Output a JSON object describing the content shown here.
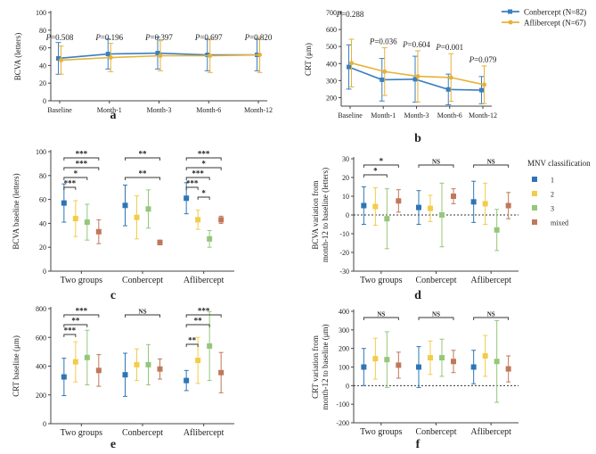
{
  "colors": {
    "conbercept": "#3a7fbf",
    "aflibercept": "#e6b23a",
    "mnv1": "#2e75b6",
    "mnv2": "#f2cc4a",
    "mnv3": "#94c77a",
    "mixed": "#c0785a"
  },
  "legend_top": {
    "conbercept": "Conbercept (N=82)",
    "aflibercept": "Aflibercept (N=67)"
  },
  "legend_mnv": {
    "title": "MNV classification",
    "items": [
      "1",
      "2",
      "3",
      "mixed"
    ]
  },
  "chart_data": [
    {
      "panel": "a",
      "type": "line",
      "ylabel": "BCVA (letters)",
      "categories": [
        "Baseline",
        "Month-1",
        "Month-3",
        "Month-6",
        "Month-12"
      ],
      "ylim": [
        0,
        100
      ],
      "yticks": [
        0,
        20,
        40,
        60,
        80,
        100
      ],
      "pvalues": [
        "P=0.508",
        "P=0.196",
        "P=0.397",
        "P=0.697",
        "P=0.820"
      ],
      "series": [
        {
          "name": "Conbercept (N=82)",
          "values": [
            48,
            53,
            54,
            52,
            52
          ],
          "err": [
            18,
            17,
            18,
            18,
            18
          ]
        },
        {
          "name": "Aflibercept (N=67)",
          "values": [
            46,
            49,
            51,
            51,
            52
          ],
          "err": [
            16,
            16,
            17,
            19,
            20
          ]
        }
      ]
    },
    {
      "panel": "b",
      "type": "line",
      "ylabel": "CRT (μm)",
      "categories": [
        "Baseline",
        "Month-1",
        "Month-3",
        "Month-6",
        "Month-12"
      ],
      "ylim": [
        150,
        700
      ],
      "yticks": [
        200,
        300,
        400,
        500,
        600,
        700
      ],
      "pvalues": [
        "P=0.288",
        "P=0.036",
        "P=0.604",
        "P=0.001",
        "P=0.079"
      ],
      "series": [
        {
          "name": "Conbercept (N=82)",
          "values": [
            380,
            305,
            308,
            248,
            244
          ],
          "err": [
            130,
            125,
            135,
            90,
            80
          ]
        },
        {
          "name": "Aflibercept (N=67)",
          "values": [
            403,
            353,
            325,
            318,
            276
          ],
          "err": [
            140,
            140,
            150,
            140,
            110
          ]
        }
      ]
    },
    {
      "panel": "c",
      "type": "scatter",
      "ylabel": "BCVA baseline (letters)",
      "categories": [
        "Two groups",
        "Conbercept",
        "Aflibercept"
      ],
      "ylim": [
        0,
        100
      ],
      "yticks": [
        0,
        20,
        40,
        60,
        80,
        100
      ],
      "series": [
        {
          "name": "1",
          "values": [
            57,
            55,
            61
          ],
          "err": [
            16,
            17,
            13
          ]
        },
        {
          "name": "2",
          "values": [
            44,
            45,
            43
          ],
          "err": [
            15,
            18,
            8
          ]
        },
        {
          "name": "3",
          "values": [
            41,
            52,
            27
          ],
          "err": [
            15,
            16,
            7
          ]
        },
        {
          "name": "mixed",
          "values": [
            33,
            24,
            43
          ],
          "err": [
            10,
            2,
            3
          ]
        }
      ],
      "significance": [
        {
          "group": 0,
          "a": 0,
          "b": 3,
          "label": "***",
          "level": 0
        },
        {
          "group": 0,
          "a": 0,
          "b": 3,
          "label": "***",
          "level": 1
        },
        {
          "group": 0,
          "a": 0,
          "b": 2,
          "label": "*",
          "level": 2
        },
        {
          "group": 0,
          "a": 0,
          "b": 1,
          "label": "***",
          "level": 3
        },
        {
          "group": 1,
          "a": 0,
          "b": 3,
          "label": "**",
          "level": 0
        },
        {
          "group": 1,
          "a": 0,
          "b": 3,
          "label": "**",
          "level": 2
        },
        {
          "group": 2,
          "a": 0,
          "b": 3,
          "label": "***",
          "level": 0
        },
        {
          "group": 2,
          "a": 0,
          "b": 3,
          "label": "*",
          "level": 1
        },
        {
          "group": 2,
          "a": 0,
          "b": 2,
          "label": "***",
          "level": 2
        },
        {
          "group": 2,
          "a": 0,
          "b": 1,
          "label": "***",
          "level": 3
        },
        {
          "group": 2,
          "a": 1,
          "b": 2,
          "label": "*",
          "level": 4
        }
      ]
    },
    {
      "panel": "d",
      "type": "scatter",
      "ylabel": "BCVA variation from month-12 to baseline (letters)",
      "categories": [
        "Two groups",
        "Conbercept",
        "Aflibercept"
      ],
      "ylim": [
        -30,
        30
      ],
      "yticks": [
        -30,
        -20,
        -10,
        0,
        10,
        20,
        30
      ],
      "series": [
        {
          "name": "1",
          "values": [
            5,
            4,
            7
          ],
          "err": [
            10,
            9,
            11
          ]
        },
        {
          "name": "2",
          "values": [
            4.5,
            3.5,
            6
          ],
          "err": [
            10,
            7,
            11
          ]
        },
        {
          "name": "3",
          "values": [
            -2,
            0,
            -8
          ],
          "err": [
            16,
            17,
            11
          ]
        },
        {
          "name": "mixed",
          "values": [
            7.5,
            10,
            5
          ],
          "err": [
            6,
            4,
            7
          ]
        }
      ],
      "significance": [
        {
          "group": 0,
          "a": 0,
          "b": 3,
          "label": "*",
          "level": 0
        },
        {
          "group": 0,
          "a": 0,
          "b": 2,
          "label": "*",
          "level": 1
        },
        {
          "group": 1,
          "a": 0,
          "b": 3,
          "label": "NS",
          "level": 0
        },
        {
          "group": 2,
          "a": 0,
          "b": 3,
          "label": "NS",
          "level": 0
        }
      ]
    },
    {
      "panel": "e",
      "type": "scatter",
      "ylabel": "CRT baseline (μm)",
      "categories": [
        "Two groups",
        "Conbercept",
        "Aflibercept"
      ],
      "ylim": [
        0,
        800
      ],
      "yticks": [
        0,
        200,
        400,
        600,
        800
      ],
      "series": [
        {
          "name": "1",
          "values": [
            325,
            340,
            300
          ],
          "err": [
            130,
            150,
            70
          ]
        },
        {
          "name": "2",
          "values": [
            430,
            410,
            440
          ],
          "err": [
            140,
            110,
            160
          ]
        },
        {
          "name": "3",
          "values": [
            460,
            410,
            540
          ],
          "err": [
            190,
            140,
            240
          ]
        },
        {
          "name": "mixed",
          "values": [
            370,
            380,
            355
          ],
          "err": [
            110,
            70,
            140
          ]
        }
      ],
      "significance": [
        {
          "group": 0,
          "a": 0,
          "b": 3,
          "label": "***",
          "level": 0
        },
        {
          "group": 0,
          "a": 0,
          "b": 2,
          "label": "**",
          "level": 1
        },
        {
          "group": 0,
          "a": 0,
          "b": 1,
          "label": "***",
          "level": 2
        },
        {
          "group": 1,
          "a": 0,
          "b": 3,
          "label": "NS",
          "level": 0
        },
        {
          "group": 2,
          "a": 0,
          "b": 3,
          "label": "***",
          "level": 0
        },
        {
          "group": 2,
          "a": 0,
          "b": 2,
          "label": "**",
          "level": 1
        },
        {
          "group": 2,
          "a": 0,
          "b": 1,
          "label": "**",
          "level": 3
        }
      ]
    },
    {
      "panel": "f",
      "type": "scatter",
      "ylabel": "CRT variation from month-12 to baseline (μm)",
      "categories": [
        "Two groups",
        "Conbercept",
        "Aflibercept"
      ],
      "ylim": [
        -200,
        400
      ],
      "yticks": [
        -200,
        -100,
        0,
        100,
        200,
        300,
        400
      ],
      "series": [
        {
          "name": "1",
          "values": [
            100,
            100,
            100
          ],
          "err": [
            100,
            110,
            90
          ]
        },
        {
          "name": "2",
          "values": [
            145,
            150,
            160
          ],
          "err": [
            110,
            90,
            110
          ]
        },
        {
          "name": "3",
          "values": [
            140,
            150,
            130
          ],
          "err": [
            150,
            100,
            220
          ]
        },
        {
          "name": "mixed",
          "values": [
            110,
            130,
            90
          ],
          "err": [
            70,
            60,
            70
          ]
        }
      ],
      "significance": [
        {
          "group": 0,
          "a": 0,
          "b": 3,
          "label": "NS",
          "level": 0
        },
        {
          "group": 1,
          "a": 0,
          "b": 3,
          "label": "NS",
          "level": 0
        },
        {
          "group": 2,
          "a": 0,
          "b": 3,
          "label": "NS",
          "level": 0
        }
      ]
    }
  ]
}
